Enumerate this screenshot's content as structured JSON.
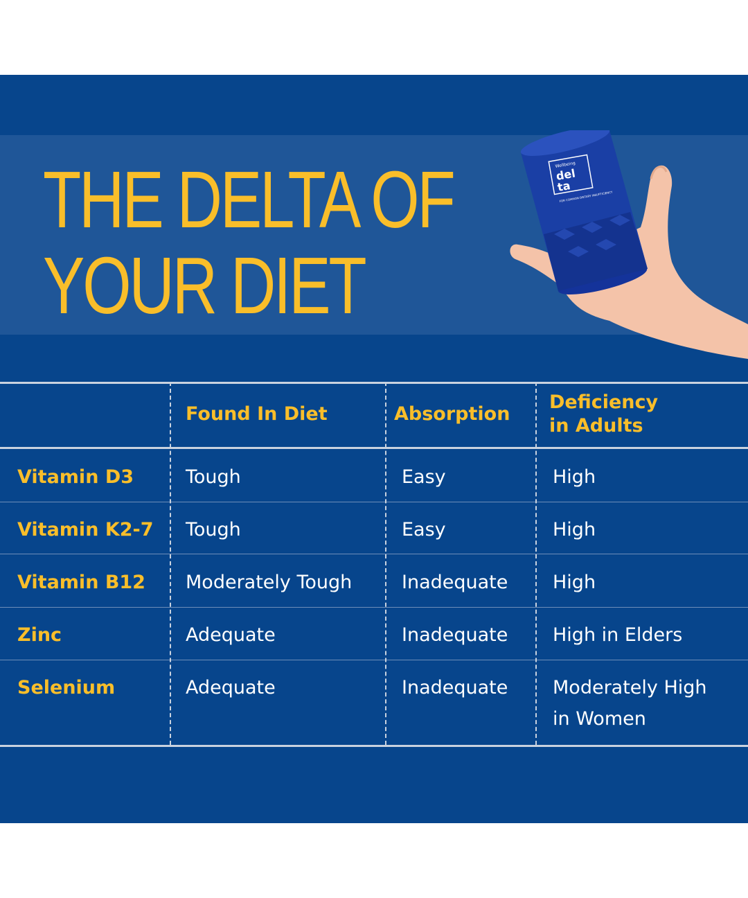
{
  "title": {
    "line1": "THE DELTA OF",
    "line2": "YOUR DIET"
  },
  "product": {
    "brand": "Wellbeing",
    "name_line1": "del",
    "name_line2": "ta",
    "tagline": "FOR COMMON DIETARY INSUFFICIENCY"
  },
  "colors": {
    "panel": "#07458C",
    "band": "#1F5698",
    "accent": "#F9BE2A",
    "text": "#FFFFFF"
  },
  "table": {
    "headers": [
      "",
      "Found In Diet",
      "Absorption",
      "Deficiency in Adults"
    ],
    "header_deficiency_line1": "Deficiency",
    "header_deficiency_line2": "in Adults",
    "rows": [
      {
        "nutrient": "Vitamin D3",
        "found": "Tough",
        "absorption": "Easy",
        "deficiency": "High",
        "deficiency2": ""
      },
      {
        "nutrient": "Vitamin K2-7",
        "found": "Tough",
        "absorption": "Easy",
        "deficiency": "High",
        "deficiency2": ""
      },
      {
        "nutrient": "Vitamin B12",
        "found": "Moderately Tough",
        "absorption": "Inadequate",
        "deficiency": "High",
        "deficiency2": ""
      },
      {
        "nutrient": "Zinc",
        "found": "Adequate",
        "absorption": "Inadequate",
        "deficiency": "High in Elders",
        "deficiency2": ""
      },
      {
        "nutrient": "Selenium",
        "found": "Adequate",
        "absorption": "Inadequate",
        "deficiency": "Moderately High",
        "deficiency2": "in Women"
      }
    ]
  }
}
